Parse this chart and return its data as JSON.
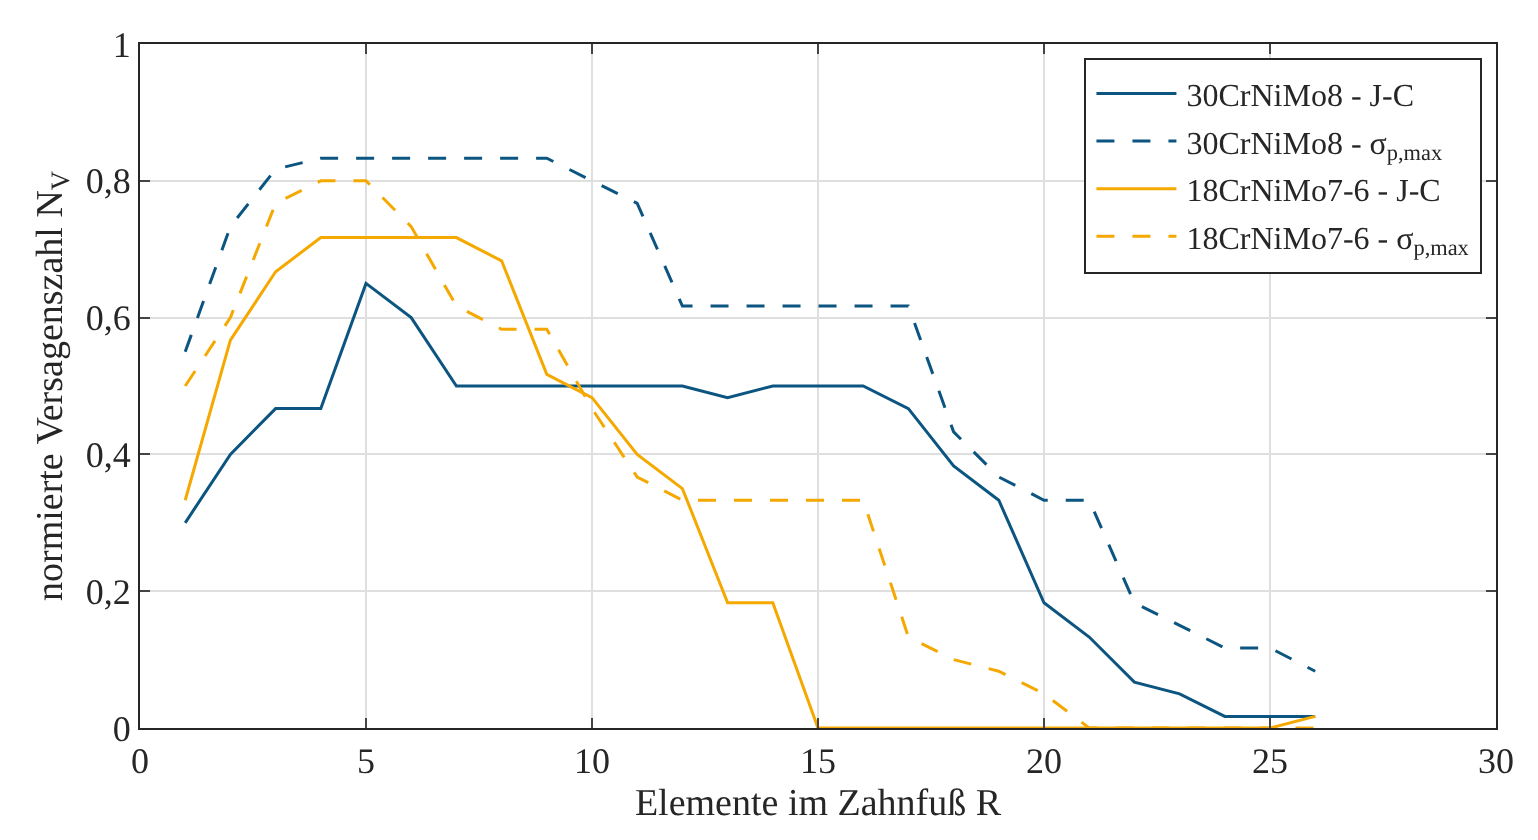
{
  "chart_data": {
    "type": "line",
    "xlabel": "Elemente im Zahnfuß R",
    "ylabel": "normierte Versagenszahl N$_{V}$",
    "x": [
      1,
      2,
      3,
      4,
      5,
      6,
      7,
      8,
      9,
      10,
      11,
      12,
      13,
      14,
      15,
      16,
      17,
      18,
      19,
      20,
      21,
      22,
      23,
      24,
      25,
      26
    ],
    "series": [
      {
        "name": "30CrNiMo8 - J-C",
        "color": "#0b5580",
        "line_style": "solid",
        "values": [
          0.3,
          0.4,
          0.467,
          0.467,
          0.65,
          0.6,
          0.5,
          0.5,
          0.5,
          0.5,
          0.5,
          0.5,
          0.483,
          0.5,
          0.5,
          0.5,
          0.467,
          0.383,
          0.333,
          0.183,
          0.133,
          0.067,
          0.05,
          0.017,
          0.017,
          0.017
        ]
      },
      {
        "name": "30CrNiMo8 - σ$_{p,max}$",
        "color": "#0b5580",
        "line_style": "dashed",
        "values": [
          0.55,
          0.733,
          0.817,
          0.833,
          0.833,
          0.833,
          0.833,
          0.833,
          0.833,
          0.8,
          0.767,
          0.617,
          0.617,
          0.617,
          0.617,
          0.617,
          0.617,
          0.433,
          0.367,
          0.333,
          0.333,
          0.183,
          0.15,
          0.117,
          0.117,
          0.083
        ]
      },
      {
        "name": "18CrNiMo7-6 - J-C",
        "color": "#f5a800",
        "line_style": "solid",
        "values": [
          0.333,
          0.567,
          0.667,
          0.717,
          0.717,
          0.717,
          0.717,
          0.683,
          0.517,
          0.483,
          0.4,
          0.35,
          0.183,
          0.183,
          0,
          0,
          0,
          0,
          0,
          0,
          0,
          0,
          0,
          0,
          0,
          0.017
        ]
      },
      {
        "name": "18CrNiMo7-6 - σ$_{p,max}$",
        "color": "#f5a800",
        "line_style": "dashed",
        "values": [
          0.5,
          0.6,
          0.767,
          0.8,
          0.8,
          0.733,
          0.617,
          0.583,
          0.583,
          0.467,
          0.367,
          0.333,
          0.333,
          0.333,
          0.333,
          0.333,
          0.133,
          0.1,
          0.083,
          0.05,
          0,
          0,
          0,
          0,
          0,
          0
        ]
      }
    ],
    "xlim": [
      0,
      30
    ],
    "xticks": [
      0,
      5,
      10,
      15,
      20,
      25,
      30
    ],
    "ylim": [
      0,
      1
    ],
    "yticks": [
      0,
      {
        "value": 0.2,
        "label": "0,2"
      },
      {
        "value": 0.4,
        "label": "0,4"
      },
      {
        "value": 0.6,
        "label": "0,6"
      },
      {
        "value": 0.8,
        "label": "0,8"
      },
      1
    ],
    "grid": true,
    "legend": "top right",
    "marker": "none"
  }
}
